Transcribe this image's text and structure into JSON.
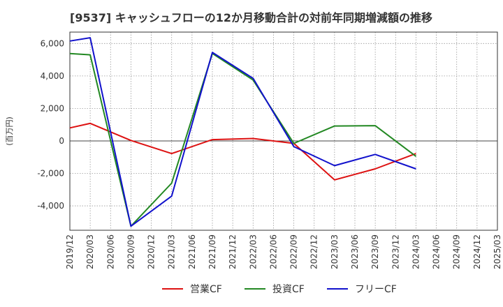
{
  "chart_data": {
    "type": "line",
    "title": "[9537]  キャッシュフローの12か月移動合計の対前年同期増減額の推移",
    "ylabel": "(百万円)",
    "xlabel": "",
    "ylim": [
      -5500,
      6700
    ],
    "yticks": [
      -4000,
      -2000,
      0,
      2000,
      4000,
      6000
    ],
    "ytick_labels": [
      "-4,000",
      "-2,000",
      "0",
      "2,000",
      "4,000",
      "6,000"
    ],
    "categories": [
      "2019/12",
      "2020/03",
      "2020/06",
      "2020/09",
      "2020/12",
      "2021/03",
      "2021/06",
      "2021/09",
      "2021/12",
      "2022/03",
      "2022/06",
      "2022/09",
      "2022/12",
      "2023/03",
      "2023/06",
      "2023/09",
      "2023/12",
      "2024/03",
      "2024/06",
      "2024/09",
      "2024/12",
      "2025/03"
    ],
    "grid": true,
    "legend_position": "bottom",
    "series": [
      {
        "name": "営業CF",
        "color": "#dd1111",
        "values": [
          800,
          1080,
          null,
          30,
          null,
          -780,
          null,
          80,
          null,
          150,
          null,
          -150,
          null,
          -2400,
          null,
          -1720,
          null,
          -780,
          null,
          null,
          null,
          null
        ]
      },
      {
        "name": "投資CF",
        "color": "#228822",
        "values": [
          5380,
          5300,
          null,
          -5250,
          null,
          -2600,
          null,
          5380,
          null,
          3750,
          null,
          -150,
          null,
          920,
          null,
          940,
          null,
          -950,
          null,
          null,
          null,
          null
        ]
      },
      {
        "name": "フリーCF",
        "color": "#1111cc",
        "values": [
          6150,
          6350,
          null,
          -5250,
          null,
          -3400,
          null,
          5450,
          null,
          3850,
          null,
          -350,
          null,
          -1520,
          null,
          -830,
          null,
          -1720,
          null,
          null,
          null,
          null
        ]
      }
    ]
  }
}
